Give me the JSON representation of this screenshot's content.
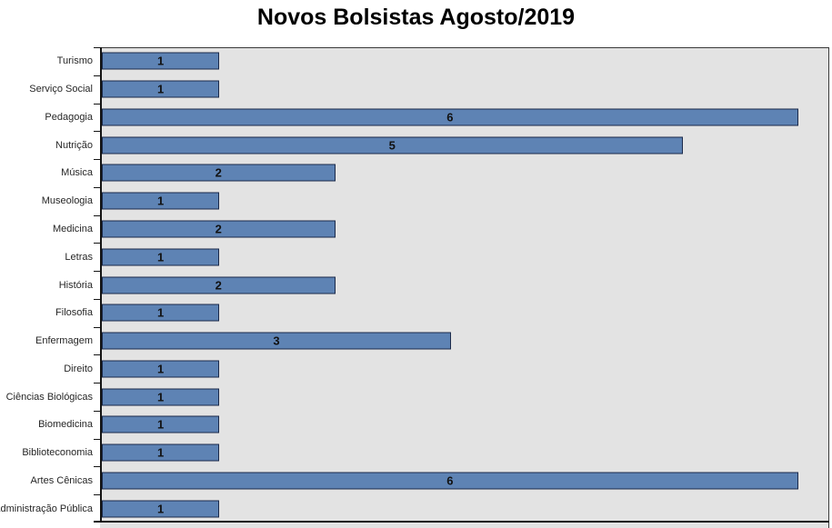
{
  "chart_data": {
    "type": "bar",
    "orientation": "horizontal",
    "title": "Novos Bolsistas Agosto/2019",
    "categories": [
      "Turismo",
      "Serviço Social",
      "Pedagogia",
      "Nutrição",
      "Música",
      "Museologia",
      "Medicina",
      "Letras",
      "História",
      "Filosofia",
      "Enfermagem",
      "Direito",
      "Ciências Biológicas",
      "Biomedicina",
      "Biblioteconomia",
      "Artes Cênicas",
      "Administração Pública"
    ],
    "values": [
      1,
      1,
      6,
      5,
      2,
      1,
      2,
      1,
      2,
      1,
      3,
      1,
      1,
      1,
      1,
      6,
      1
    ],
    "data_labels": true,
    "data_labels_position": "center",
    "xlabel": "",
    "ylabel": "",
    "xlim": [
      0,
      6.3
    ],
    "grid": false,
    "legend": false,
    "colors": {
      "figure_background": "#ffffff",
      "plot_background": "#e3e3e3",
      "bar_fill": "#5e83b4",
      "bar_border": "#1b2a4a",
      "axis_line": "#141414",
      "frame_line": "#3a3a3a",
      "title_text": "#000000",
      "category_text": "#262626",
      "value_text": "#111111"
    }
  }
}
